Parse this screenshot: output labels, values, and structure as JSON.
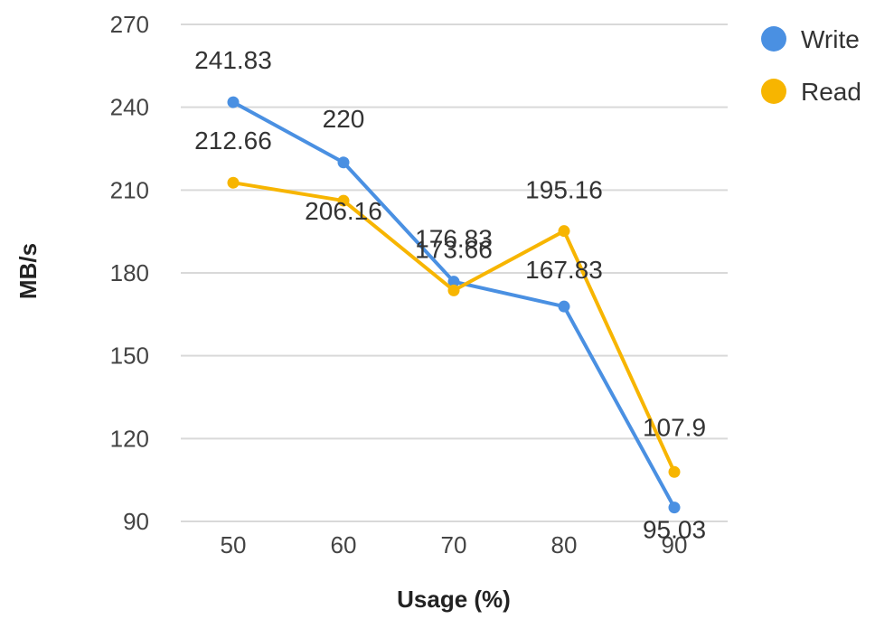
{
  "chart_data": {
    "type": "line",
    "title": "",
    "xlabel": "Usage (%)",
    "ylabel": "MB/s",
    "categories": [
      "50",
      "60",
      "70",
      "80",
      "90"
    ],
    "ylim": [
      90,
      270
    ],
    "yticks": [
      90,
      120,
      150,
      180,
      210,
      240,
      270
    ],
    "grid": true,
    "legend_position": "top-right",
    "series": [
      {
        "name": "Write",
        "color": "#4a90e2",
        "values": [
          241.83,
          220,
          176.83,
          167.83,
          95.03
        ],
        "labels": [
          "241.83",
          "220",
          "176.83",
          "167.83",
          "95.03"
        ]
      },
      {
        "name": "Read",
        "color": "#f7b500",
        "values": [
          212.66,
          206.16,
          173.66,
          195.16,
          107.9
        ],
        "labels": [
          "212.66",
          "206.16",
          "173.66",
          "195.16",
          "107.9"
        ]
      }
    ]
  }
}
